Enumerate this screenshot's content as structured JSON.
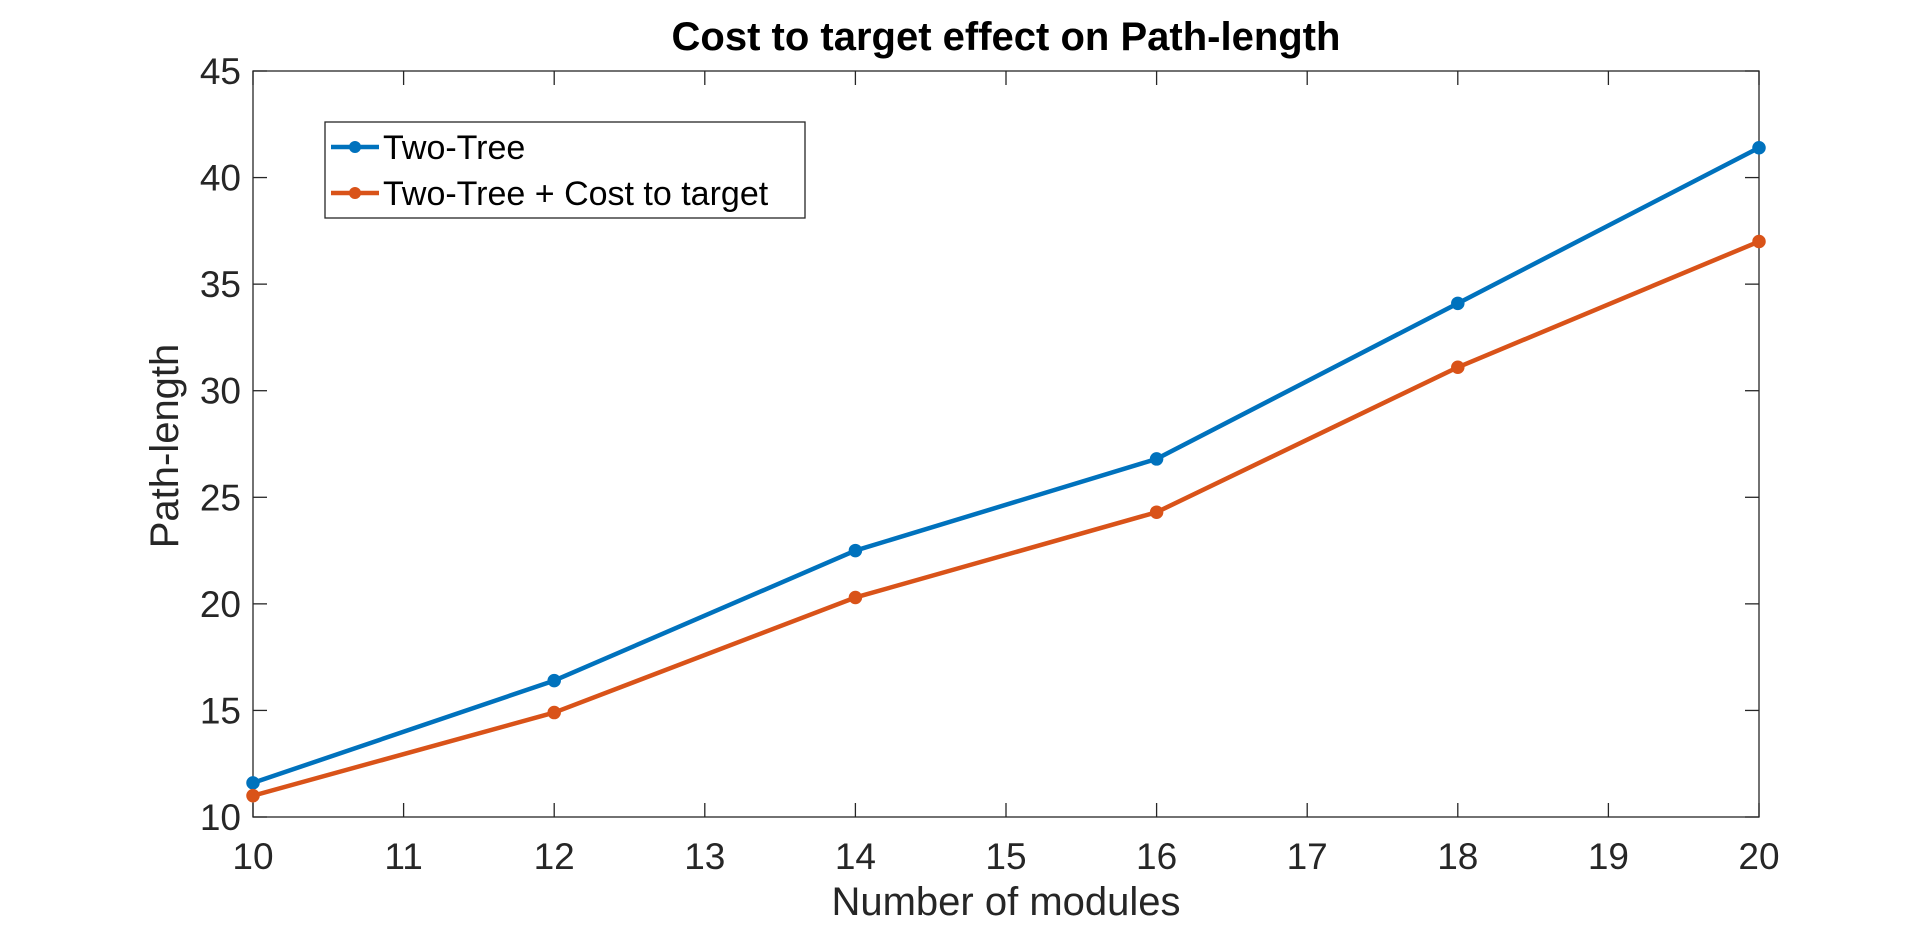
{
  "chart_data": {
    "type": "line",
    "title": "Cost to target effect on Path-length",
    "xlabel": "Number of modules",
    "ylabel": "Path-length",
    "xlim": [
      10,
      20
    ],
    "ylim": [
      10,
      45
    ],
    "xticks": [
      10,
      11,
      12,
      13,
      14,
      15,
      16,
      17,
      18,
      19,
      20
    ],
    "yticks": [
      10,
      15,
      20,
      25,
      30,
      35,
      40,
      45
    ],
    "grid": false,
    "legend_position": "top-left",
    "x": [
      10,
      12,
      14,
      16,
      18,
      20
    ],
    "series": [
      {
        "name": "Two-Tree",
        "color": "#0072BD",
        "values": [
          11.6,
          16.4,
          22.5,
          26.8,
          34.1,
          41.4
        ]
      },
      {
        "name": "Two-Tree + Cost to target",
        "color": "#D95319",
        "values": [
          11.0,
          14.9,
          20.3,
          24.3,
          31.1,
          37.0
        ]
      }
    ]
  }
}
